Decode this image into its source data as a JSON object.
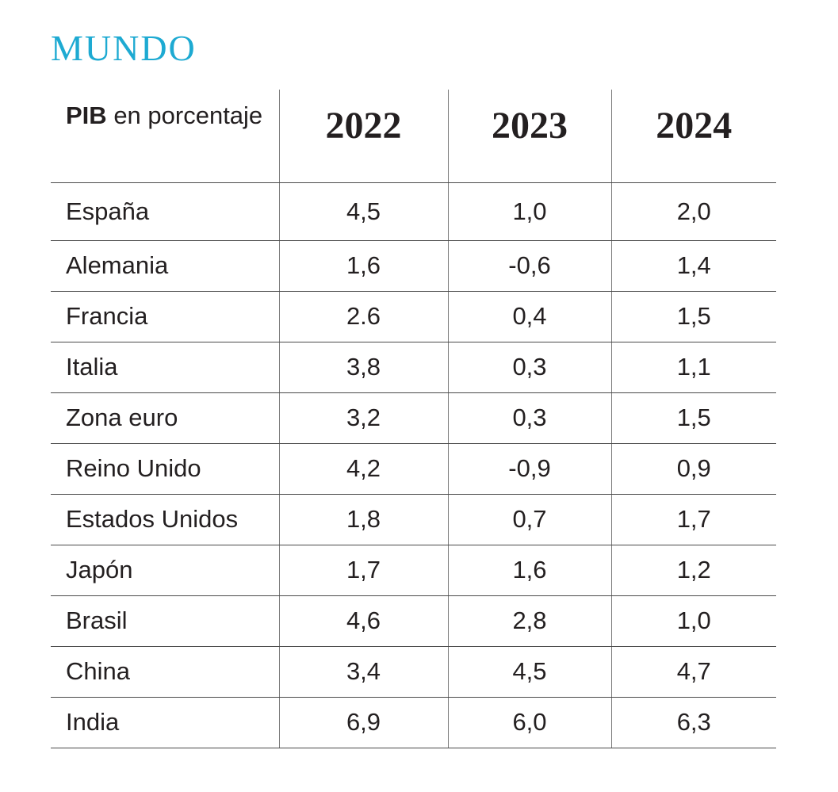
{
  "title": "MUNDO",
  "accent_color": "#1eaad2",
  "chart_data": {
    "type": "table",
    "header": {
      "label_bold": "PIB",
      "label_rest": "en porcentaje"
    },
    "columns": [
      "2022",
      "2023",
      "2024"
    ],
    "rows": [
      {
        "country": "España",
        "values": [
          "4,5",
          "1,0",
          "2,0"
        ]
      },
      {
        "country": "Alemania",
        "values": [
          "1,6",
          "-0,6",
          "1,4"
        ]
      },
      {
        "country": "Francia",
        "values": [
          "2.6",
          "0,4",
          "1,5"
        ]
      },
      {
        "country": "Italia",
        "values": [
          "3,8",
          "0,3",
          "1,1"
        ]
      },
      {
        "country": "Zona euro",
        "values": [
          "3,2",
          "0,3",
          "1,5"
        ]
      },
      {
        "country": "Reino Unido",
        "values": [
          "4,2",
          "-0,9",
          "0,9"
        ]
      },
      {
        "country": "Estados Unidos",
        "values": [
          "1,8",
          "0,7",
          "1,7"
        ]
      },
      {
        "country": "Japón",
        "values": [
          "1,7",
          "1,6",
          "1,2"
        ]
      },
      {
        "country": "Brasil",
        "values": [
          "4,6",
          "2,8",
          "1,0"
        ]
      },
      {
        "country": "China",
        "values": [
          "3,4",
          "4,5",
          "4,7"
        ]
      },
      {
        "country": "India",
        "values": [
          "6,9",
          "6,0",
          "6,3"
        ]
      }
    ]
  }
}
